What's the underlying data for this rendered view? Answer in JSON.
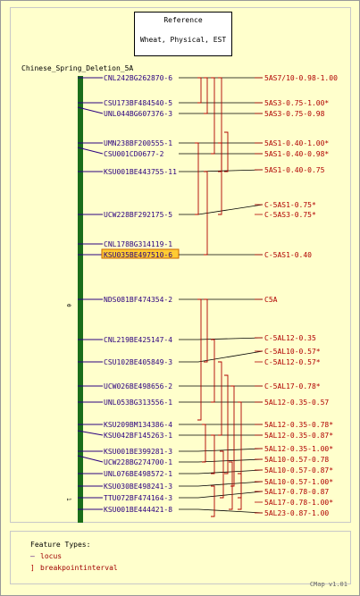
{
  "reference": {
    "title": "Reference",
    "subtitle": "Wheat, Physical, EST"
  },
  "map_title": "Chinese_Spring_Deletion_5A",
  "scale": {
    "top": "0",
    "bottom": "1"
  },
  "markers": [
    "CNL242BG262870-6",
    "CSU173BF484540-5",
    "UNL044BG607376-3",
    "UMN238BF200555-1",
    "CSU001CD0677-2",
    "KSU001BE443755-11",
    "UCW228BF292175-5",
    "CNL178BG314119-1",
    "KSU035BE497510-6",
    "NDS081BF474354-2",
    "CNL219BE425147-4",
    "CSU102BE405849-3",
    "UCW026BE498656-2",
    "UNL053BG313556-1",
    "KSU209BM134386-4",
    "KSU042BF145263-1",
    "KSU001BE399281-3",
    "UCW228BG274700-1",
    "UNL076BE498572-1",
    "KSU030BE498241-3",
    "TTU072BF474164-3",
    "KSU001BE444421-8"
  ],
  "highlighted_marker": "KSU035BE497510-6",
  "bins": [
    "5AS7/10-0.98-1.00",
    "5AS3-0.75-1.00*",
    "5AS3-0.75-0.98",
    "5AS1-0.40-1.00*",
    "5AS1-0.40-0.98*",
    "5AS1-0.40-0.75",
    "C-5AS1-0.75*",
    "C-5AS3-0.75*",
    "C-5AS1-0.40",
    "C5A",
    "C-5AL12-0.35",
    "C-5AL10-0.57*",
    "C-5AL12-0.57*",
    "C-5AL17-0.78*",
    "5AL12-0.35-0.57",
    "5AL12-0.35-0.78*",
    "5AL12-0.35-0.87*",
    "5AL12-0.35-1.00*",
    "5AL10-0.57-0.78",
    "5AL10-0.57-0.87*",
    "5AL10-0.57-1.00*",
    "5AL17-0.78-0.87",
    "5AL17-0.78-1.00*",
    "5AL23-0.87-1.00"
  ],
  "legend": {
    "title": "Feature Types:",
    "locus": "locus",
    "breakpoint": "breakpointinterval"
  },
  "version": "CMap v1.01",
  "colors": {
    "marker": "#2b0080",
    "bin": "#b00000",
    "chromosome": "#1a6e1a",
    "highlight": "#ffcc33"
  }
}
